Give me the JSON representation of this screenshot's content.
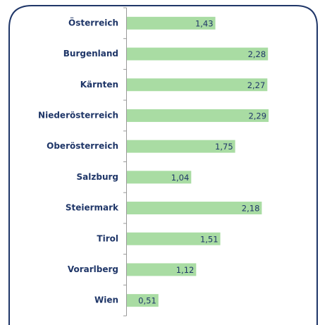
{
  "chart_data": {
    "type": "bar",
    "orientation": "horizontal",
    "categories": [
      "Österreich",
      "Burgenland",
      "Kärnten",
      "Niederösterreich",
      "Oberösterreich",
      "Salzburg",
      "Steiermark",
      "Tirol",
      "Vorarlberg",
      "Wien"
    ],
    "values": [
      1.43,
      2.28,
      2.27,
      2.29,
      1.75,
      1.04,
      2.18,
      1.51,
      1.12,
      0.51
    ],
    "value_labels": [
      "1,43",
      "2,28",
      "2,27",
      "2,29",
      "1,75",
      "1,04",
      "2,18",
      "1,51",
      "1,12",
      "0,51"
    ],
    "color": "#a9dca3"
  }
}
